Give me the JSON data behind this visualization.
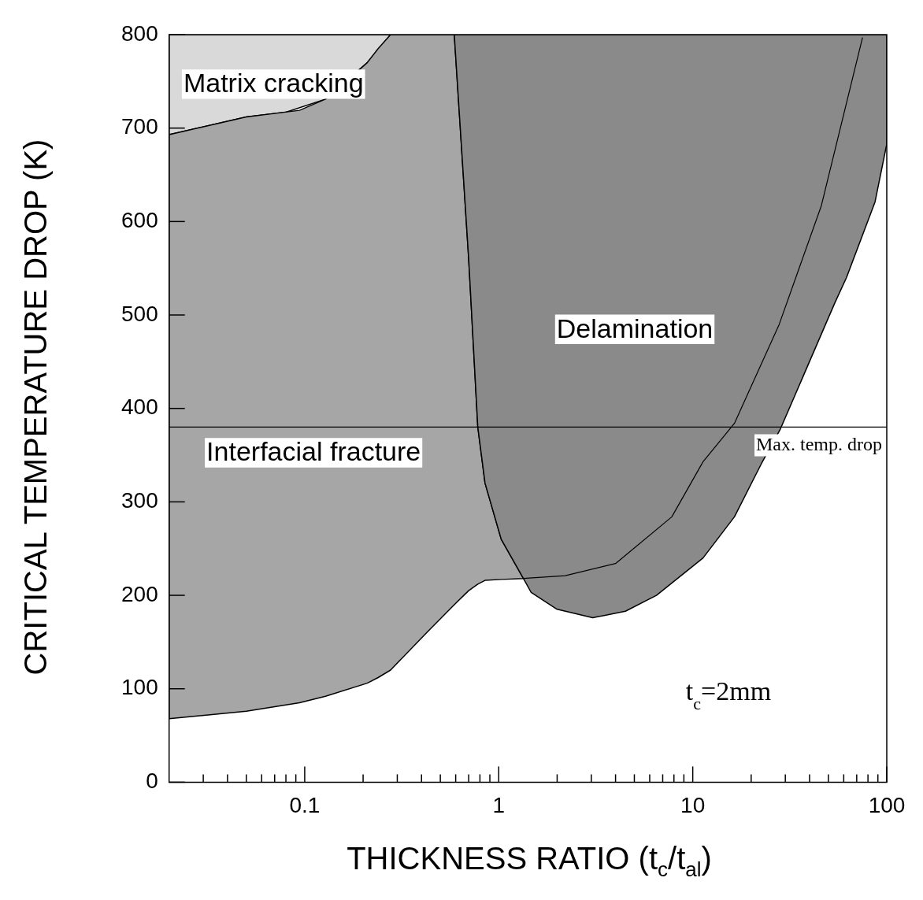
{
  "chart_data": {
    "type": "area",
    "xlabel": "THICKNESS RATIO (t$_{c}$/t$_{al}$)",
    "ylabel": "CRITICAL TEMPERATURE DROP (K)",
    "log": "x",
    "xlim": [
      0.02,
      100
    ],
    "ylim": [
      0,
      800
    ],
    "xticks": [
      {
        "value": 0.03,
        "label": null
      },
      {
        "value": 0.04,
        "label": null
      },
      {
        "value": 0.05,
        "label": null
      },
      {
        "value": 0.06,
        "label": null
      },
      {
        "value": 0.07,
        "label": null
      },
      {
        "value": 0.08,
        "label": null
      },
      {
        "value": 0.09,
        "label": null
      },
      0.1,
      {
        "value": 0.2,
        "label": null
      },
      {
        "value": 0.3,
        "label": null
      },
      {
        "value": 0.4,
        "label": null
      },
      {
        "value": 0.5,
        "label": null
      },
      {
        "value": 0.6,
        "label": null
      },
      {
        "value": 0.7,
        "label": null
      },
      {
        "value": 0.8,
        "label": null
      },
      {
        "value": 0.9,
        "label": null
      },
      1,
      {
        "value": 2,
        "label": null
      },
      {
        "value": 3,
        "label": null
      },
      {
        "value": 4,
        "label": null
      },
      {
        "value": 5,
        "label": null
      },
      {
        "value": 6,
        "label": null
      },
      {
        "value": 7,
        "label": null
      },
      {
        "value": 8,
        "label": null
      },
      {
        "value": 9,
        "label": null
      },
      10,
      {
        "value": 20,
        "label": null
      },
      {
        "value": 30,
        "label": null
      },
      {
        "value": 40,
        "label": null
      },
      {
        "value": 50,
        "label": null
      },
      {
        "value": 60,
        "label": null
      },
      {
        "value": 70,
        "label": null
      },
      {
        "value": 80,
        "label": null
      },
      {
        "value": 90,
        "label": null
      },
      100
    ],
    "yticks": [
      0,
      100,
      200,
      300,
      400,
      500,
      600,
      700,
      800
    ],
    "grid": false,
    "legend": false,
    "series": [
      {
        "name": "Matrix cracking",
        "color": "#d9d9d9",
        "x": [
          0.02,
          0.05,
          0.08,
          0.128,
          0.21,
          0.277,
          0.02,
          0.02
        ],
        "values": [
          693,
          712,
          717,
          731,
          770,
          800,
          800,
          693
        ]
      },
      {
        "name": "Interfacial fracture",
        "color": "#a6a6a6",
        "x": [
          0.02,
          0.05,
          0.094,
          0.128,
          0.21,
          0.239,
          0.277,
          0.43,
          0.59,
          0.7,
          0.78,
          0.85,
          1.03,
          1.34,
          1.03,
          0.85,
          0.78,
          0.7,
          0.59,
          0.43,
          0.277,
          0.239,
          0.21,
          0.128,
          0.094,
          0.05,
          0.02,
          0.02
        ],
        "values": [
          693,
          712,
          719,
          731,
          770,
          785,
          800,
          800,
          800,
          560,
          380,
          320,
          260,
          218,
          217,
          216,
          212,
          205,
          190,
          161,
          120,
          112,
          106,
          92,
          85,
          76,
          68,
          693
        ]
      },
      {
        "name": "Delamination",
        "color": "#8a8a8a",
        "x": [
          0.59,
          0.7,
          0.78,
          0.85,
          1.03,
          1.34,
          1.47,
          2,
          3.05,
          4.5,
          6.5,
          11.3,
          16.4,
          22.6,
          28.3,
          54,
          62,
          87,
          100,
          100,
          0.59
        ],
        "values": [
          800,
          560,
          380,
          320,
          260,
          218,
          203,
          185,
          176,
          183,
          200,
          240,
          284,
          341,
          378,
          513,
          540,
          621,
          683,
          800,
          800
        ]
      },
      {
        "type": "line",
        "color": "#000000",
        "x": [
          1.34,
          2.2,
          4,
          7.8,
          11.3,
          16.4,
          27.9,
          46,
          75
        ],
        "values": [
          218,
          221,
          234,
          284,
          343,
          384,
          490,
          617,
          797
        ]
      }
    ],
    "ref_lines": [
      {
        "axis": "y",
        "value": 380,
        "label": "Max. temp. drop",
        "color": "#000000"
      }
    ],
    "annotations": [
      "t$_{c}$=2mm"
    ]
  }
}
